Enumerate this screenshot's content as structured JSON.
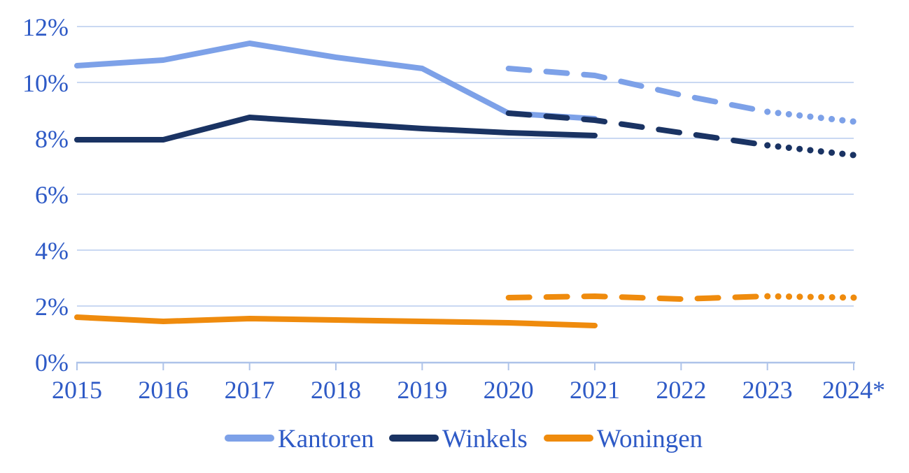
{
  "chart_data": {
    "type": "line",
    "title": "",
    "x_labels": [
      "2015",
      "2016",
      "2017",
      "2018",
      "2019",
      "2020",
      "2021",
      "2022",
      "2023",
      "2024*"
    ],
    "x_values": [
      2015,
      2016,
      2017,
      2018,
      2019,
      2020,
      2021,
      2022,
      2023,
      2024
    ],
    "ylim": [
      0,
      12
    ],
    "ytick_step": 2,
    "ytick_suffix": "%",
    "ytick_labels": [
      "0%",
      "2%",
      "4%",
      "6%",
      "8%",
      "10%",
      "12%"
    ],
    "grid": true,
    "legend_position": "bottom",
    "line_styles_note": "solid 2015-2021, dashed 2020-2023, dotted 2023-2024",
    "colors": {
      "label_text": "#2e5ac6",
      "gridline": "#c9d8f2",
      "axis": "#aec3e9",
      "kantoren": "#7da1e8",
      "winkels": "#1a3363",
      "woningen": "#ef8b0d"
    },
    "series": [
      {
        "name": "Kantoren",
        "color": "#7da1e8",
        "segments": [
          {
            "style": "solid",
            "x": [
              2015,
              2016,
              2017,
              2018,
              2019,
              2020,
              2021
            ],
            "values": [
              10.6,
              10.8,
              11.4,
              10.9,
              10.5,
              8.9,
              8.7
            ]
          },
          {
            "style": "dashed",
            "x": [
              2020,
              2021,
              2022,
              2023
            ],
            "values": [
              10.5,
              10.25,
              9.55,
              8.95
            ]
          },
          {
            "style": "dotted",
            "x": [
              2023,
              2024
            ],
            "values": [
              8.95,
              8.6
            ]
          }
        ]
      },
      {
        "name": "Winkels",
        "color": "#1a3363",
        "segments": [
          {
            "style": "solid",
            "x": [
              2015,
              2016,
              2017,
              2018,
              2019,
              2020,
              2021
            ],
            "values": [
              7.95,
              7.95,
              8.75,
              8.55,
              8.35,
              8.2,
              8.1
            ]
          },
          {
            "style": "dashed",
            "x": [
              2020,
              2021,
              2022,
              2023
            ],
            "values": [
              8.9,
              8.65,
              8.2,
              7.75
            ]
          },
          {
            "style": "dotted",
            "x": [
              2023,
              2024
            ],
            "values": [
              7.75,
              7.4
            ]
          }
        ]
      },
      {
        "name": "Woningen",
        "color": "#ef8b0d",
        "segments": [
          {
            "style": "solid",
            "x": [
              2015,
              2016,
              2017,
              2018,
              2019,
              2020,
              2021
            ],
            "values": [
              1.6,
              1.45,
              1.55,
              1.5,
              1.45,
              1.4,
              1.3
            ]
          },
          {
            "style": "dashed",
            "x": [
              2020,
              2021,
              2022,
              2023
            ],
            "values": [
              2.3,
              2.35,
              2.25,
              2.35
            ]
          },
          {
            "style": "dotted",
            "x": [
              2023,
              2024
            ],
            "values": [
              2.35,
              2.3
            ]
          }
        ]
      }
    ],
    "legend": [
      "Kantoren",
      "Winkels",
      "Woningen"
    ]
  }
}
